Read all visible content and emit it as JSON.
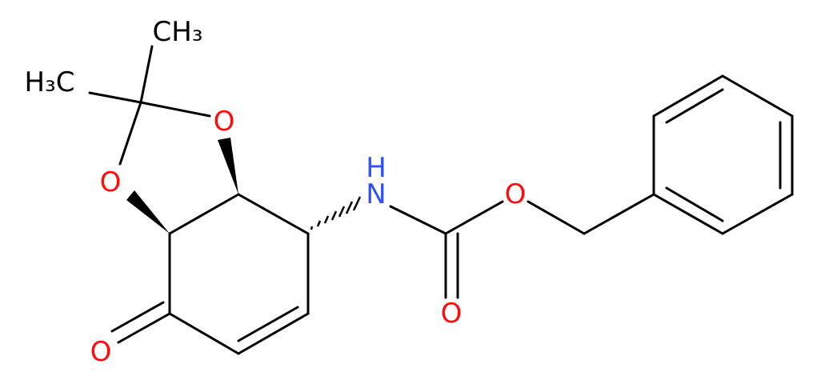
{
  "atoms": {
    "methyl_top": "CH₃",
    "methyl_left": "H₃C",
    "ring_o_upper": "O",
    "ring_o_lower": "O",
    "ketone_o": "O",
    "amide_n": "N",
    "amide_h": "H",
    "ester_o": "O",
    "carbonyl_o": "O"
  }
}
